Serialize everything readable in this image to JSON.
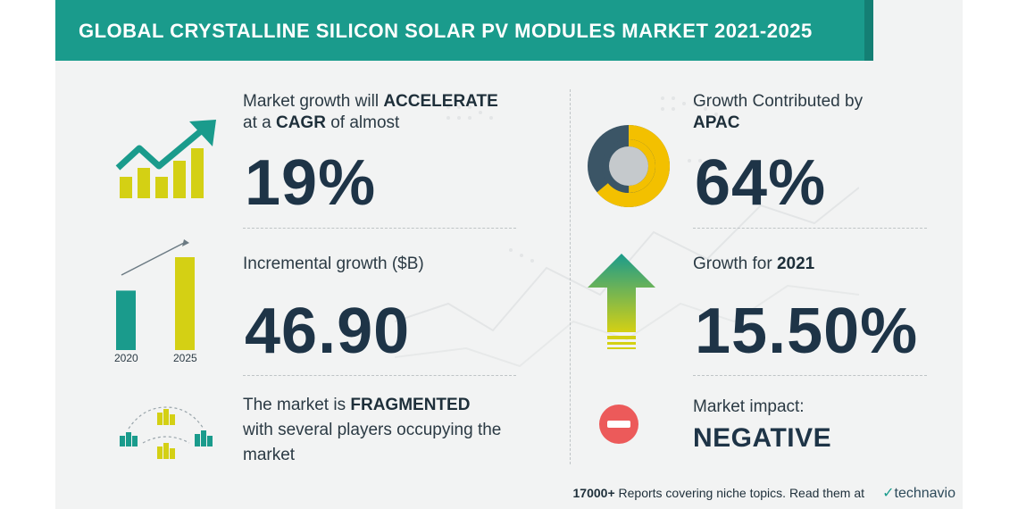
{
  "title": "GLOBAL CRYSTALLINE SILICON SOLAR PV MODULES MARKET 2021-2025",
  "left": {
    "cagr": {
      "line1_pre": "Market growth will",
      "line1_bold": "ACCELERATE",
      "line2_pre": "at a",
      "line2_bold": "CAGR",
      "line2_post": "of almost",
      "value": "19%"
    },
    "incremental": {
      "label": "Incremental growth ($B)",
      "value": "46.90",
      "bar_years": [
        "2020",
        "2025"
      ],
      "bar_values": [
        0.64,
        1.0
      ]
    },
    "fragmented": {
      "line1_pre": "The market is",
      "line1_bold": "FRAGMENTED",
      "line2": "with several players occupying the",
      "line3": "market"
    }
  },
  "right": {
    "apac": {
      "line1": "Growth Contributed by",
      "line2": "APAC",
      "value": "64%",
      "share": 0.64
    },
    "growth2021": {
      "label_pre": "Growth for",
      "label_bold": "2021",
      "value": "15.50%"
    },
    "impact": {
      "label": "Market impact:",
      "value": "NEGATIVE"
    }
  },
  "footer": {
    "count": "17000+",
    "text": "Reports covering niche topics. Read them at",
    "brand": "technavio"
  },
  "colors": {
    "teal": "#1a9b8c",
    "yellow": "#d4d014",
    "navy": "#1e3447",
    "red": "#ec5a5a",
    "gold": "#f3c000",
    "slate": "#3b5566"
  }
}
